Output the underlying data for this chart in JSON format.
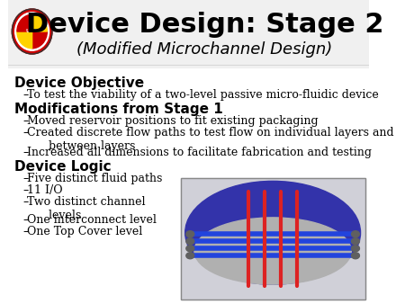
{
  "title": "Device Design: Stage 2",
  "subtitle": "(Modified Microchannel Design)",
  "bg_color": "#ffffff",
  "title_color": "#000000",
  "subtitle_color": "#000000",
  "body_color": "#000000",
  "header1": "Device Objective",
  "header1_bullets": [
    "To test the viability of a two-level passive micro-fluidic device"
  ],
  "header2": "Modifications from Stage 1",
  "header2_bullets": [
    "Moved reservoir positions to fit existing packaging",
    "Created discrete flow paths to test flow on individual layers and\n      between layers",
    "Increased all dimensions to facilitate fabrication and testing"
  ],
  "header3": "Device Logic",
  "header3_bullets": [
    "Five distinct fluid paths",
    "11 I/O",
    "Two distinct channel\n      levels",
    "One interconnect level",
    "One Top Cover level"
  ],
  "header_fontsize": 11,
  "bullet_fontsize": 9,
  "title_fontsize": 22,
  "subtitle_fontsize": 13
}
